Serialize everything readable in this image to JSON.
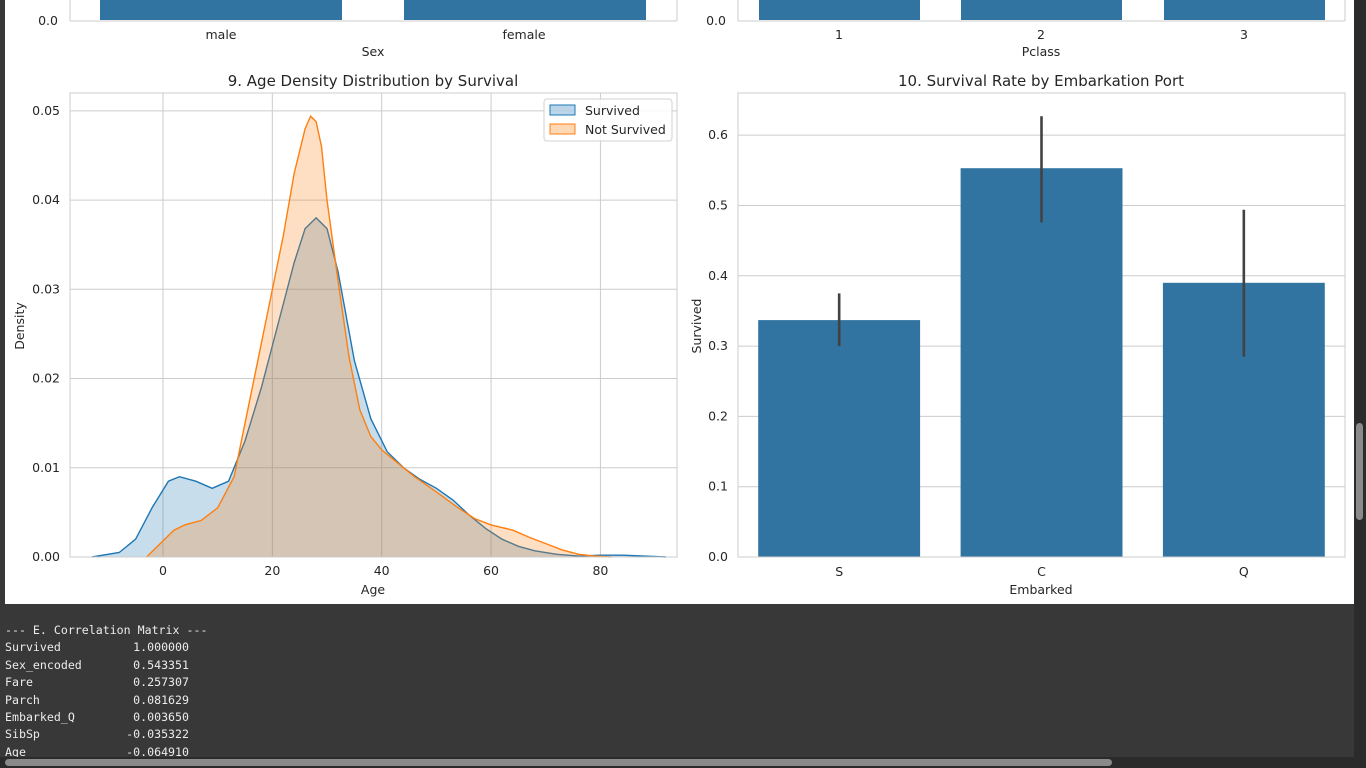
{
  "top_plots": {
    "left": {
      "tick0": "0.0",
      "categories": [
        "male",
        "female"
      ],
      "xlabel": "Sex"
    },
    "right": {
      "tick0": "0.0",
      "categories": [
        "1",
        "2",
        "3"
      ],
      "xlabel": "Pclass"
    }
  },
  "chart_data": [
    {
      "type": "area",
      "title": "9. Age Density Distribution by Survival",
      "xlabel": "Age",
      "ylabel": "Density",
      "xlim": [
        -17,
        94
      ],
      "ylim": [
        0,
        0.052
      ],
      "x_ticks": [
        0,
        20,
        40,
        60,
        80
      ],
      "y_ticks": [
        0.0,
        0.01,
        0.02,
        0.03,
        0.04,
        0.05
      ],
      "y_tick_labels": [
        "0.00",
        "0.01",
        "0.02",
        "0.03",
        "0.04",
        "0.05"
      ],
      "grid": true,
      "legend": "top-right",
      "series": [
        {
          "name": "Survived",
          "color": "#1f77b4",
          "x": [
            -13,
            -8,
            -5,
            -2,
            1,
            3,
            6,
            9,
            12,
            15,
            18,
            21,
            24,
            26,
            28,
            30,
            32,
            35,
            38,
            41,
            44,
            47,
            50,
            53,
            56,
            59,
            62,
            65,
            68,
            72,
            76,
            80,
            84,
            88,
            92
          ],
          "y": [
            0.0,
            0.0005,
            0.002,
            0.0055,
            0.0085,
            0.009,
            0.0085,
            0.0077,
            0.0085,
            0.013,
            0.019,
            0.026,
            0.033,
            0.0368,
            0.038,
            0.0368,
            0.032,
            0.022,
            0.0155,
            0.0118,
            0.01,
            0.0087,
            0.0077,
            0.0064,
            0.0047,
            0.0032,
            0.002,
            0.0012,
            0.0007,
            0.0003,
            0.0001,
            0.0002,
            0.0002,
            0.0001,
            0.0
          ]
        },
        {
          "name": "Not Survived",
          "color": "#ff7f0e",
          "x": [
            -3,
            0,
            2,
            4,
            7,
            10,
            13,
            16,
            19,
            22,
            24,
            26,
            27,
            28,
            29,
            30,
            32,
            34,
            36,
            38,
            40,
            43,
            46,
            50,
            54,
            57,
            60,
            64,
            67,
            70,
            73,
            76,
            79,
            82
          ],
          "y": [
            0.0,
            0.0018,
            0.003,
            0.0036,
            0.0041,
            0.0055,
            0.009,
            0.018,
            0.027,
            0.036,
            0.043,
            0.048,
            0.0494,
            0.0488,
            0.046,
            0.04,
            0.031,
            0.0225,
            0.0165,
            0.0135,
            0.012,
            0.0105,
            0.009,
            0.0073,
            0.0055,
            0.0043,
            0.0036,
            0.003,
            0.0022,
            0.0015,
            0.0008,
            0.0003,
            0.0001,
            0.0
          ]
        }
      ]
    },
    {
      "type": "bar",
      "title": "10. Survival Rate by Embarkation Port",
      "xlabel": "Embarked",
      "ylabel": "Survived",
      "categories": [
        "S",
        "C",
        "Q"
      ],
      "values": [
        0.337,
        0.553,
        0.39
      ],
      "error_bars": [
        [
          0.3,
          0.375
        ],
        [
          0.476,
          0.627
        ],
        [
          0.285,
          0.494
        ]
      ],
      "ylim": [
        0,
        0.66
      ],
      "y_ticks": [
        0.0,
        0.1,
        0.2,
        0.3,
        0.4,
        0.5,
        0.6
      ],
      "y_tick_labels": [
        "0.0",
        "0.1",
        "0.2",
        "0.3",
        "0.4",
        "0.5",
        "0.6"
      ],
      "bar_color": "#3274a1",
      "grid": true
    }
  ],
  "output": {
    "header": "--- E. Correlation Matrix ---",
    "rows": [
      {
        "name": "Survived",
        "value": "1.000000"
      },
      {
        "name": "Sex_encoded",
        "value": "0.543351"
      },
      {
        "name": "Fare",
        "value": "0.257307"
      },
      {
        "name": "Parch",
        "value": "0.081629"
      },
      {
        "name": "Embarked_Q",
        "value": "0.003650"
      },
      {
        "name": "SibSp",
        "value": "-0.035322"
      },
      {
        "name": "Age",
        "value": "-0.064910"
      }
    ]
  }
}
